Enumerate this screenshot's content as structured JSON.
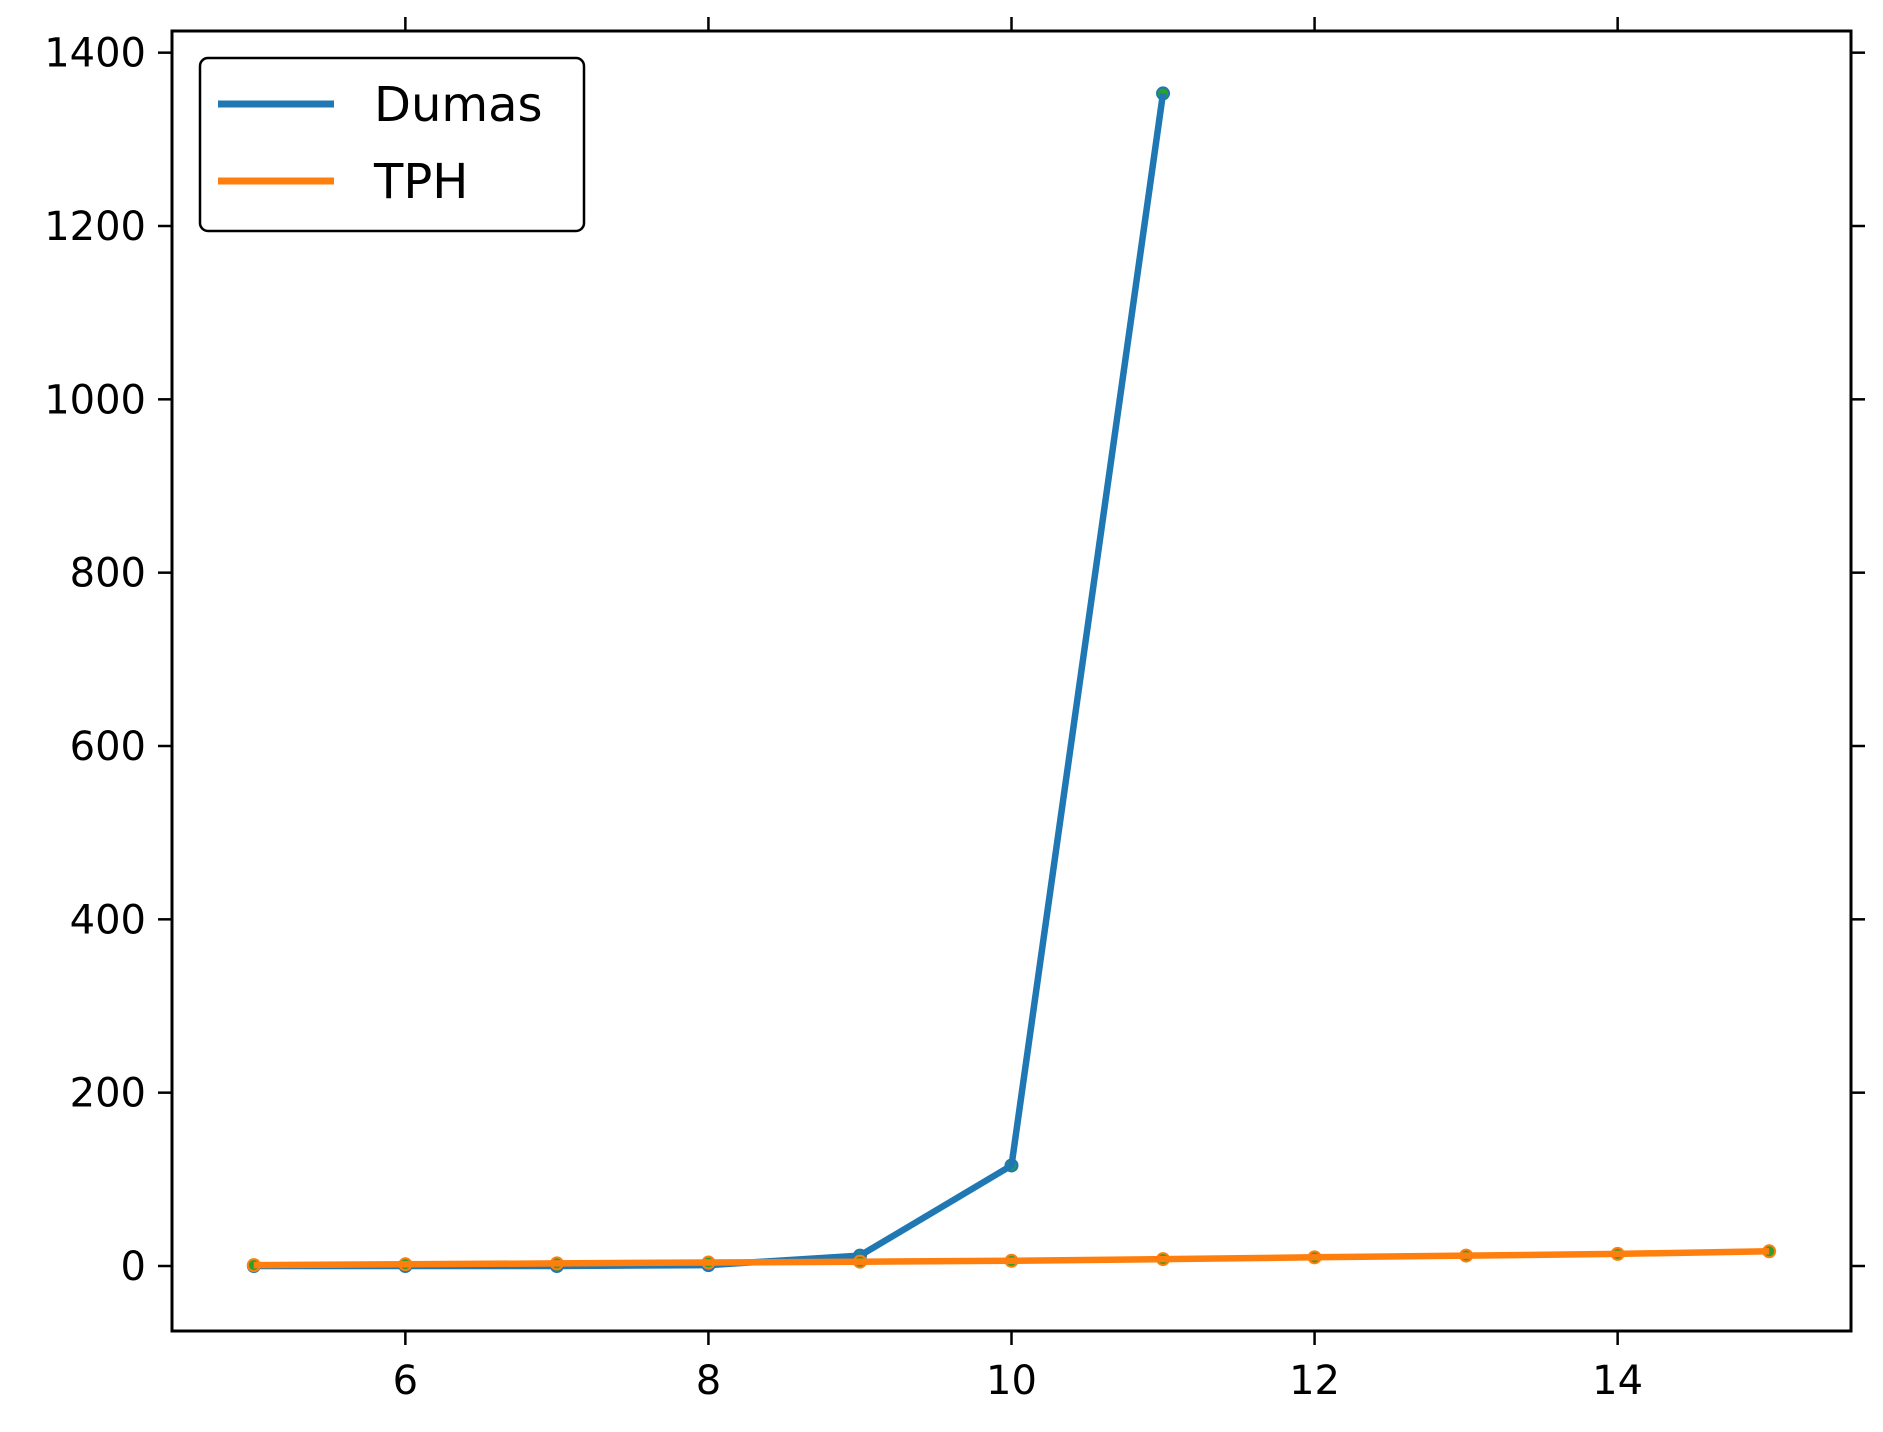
{
  "chart_data": {
    "type": "line",
    "title": "",
    "xlabel": "",
    "ylabel": "",
    "xlim": [
      4.46,
      15.54
    ],
    "ylim": [
      -75,
      1425
    ],
    "x_ticks": [
      6,
      8,
      10,
      12,
      14
    ],
    "y_ticks": [
      0,
      200,
      400,
      600,
      800,
      1000,
      1200,
      1400
    ],
    "x_tick_labels": [
      "6",
      "8",
      "10",
      "12",
      "14"
    ],
    "y_tick_labels": [
      "0",
      "200",
      "400",
      "600",
      "800",
      "1000",
      "1200",
      "1400"
    ],
    "grid": false,
    "ticks_on_all_sides": true,
    "legend_position": "top-left",
    "marker_color": "#2ca02c",
    "series": [
      {
        "name": "Dumas",
        "color": "#1f77b4",
        "x": [
          5,
          6,
          7,
          8,
          9,
          10,
          11
        ],
        "y": [
          0,
          0,
          0,
          1,
          12,
          116,
          1353
        ]
      },
      {
        "name": "TPH",
        "color": "#ff7f0e",
        "x": [
          5,
          6,
          7,
          8,
          9,
          10,
          11,
          12,
          13,
          14,
          15
        ],
        "y": [
          1,
          2,
          3,
          4,
          5,
          6,
          8,
          10,
          12,
          14,
          17
        ]
      }
    ]
  }
}
